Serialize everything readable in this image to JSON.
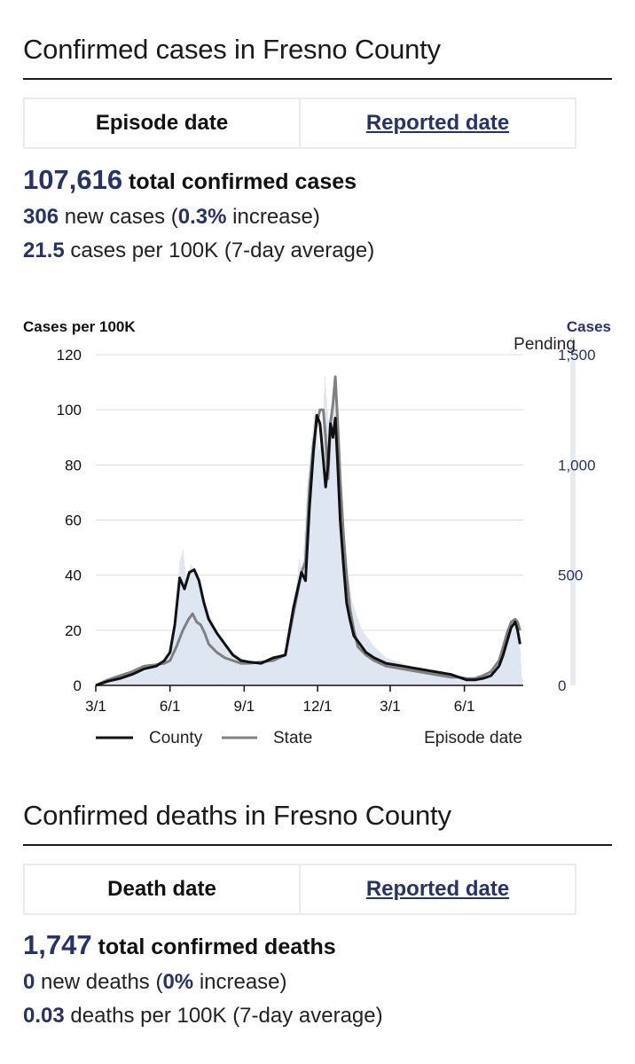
{
  "cases_section": {
    "title": "Confirmed cases in Fresno County",
    "toggle": {
      "active_label": "Episode date",
      "link_label": "Reported date"
    },
    "total_value": "107,616",
    "total_label": "total confirmed cases",
    "new_value": "306",
    "new_label_pre": "new cases (",
    "new_pct": "0.3%",
    "new_label_post": "increase)",
    "rate_value": "21.5",
    "rate_label": "cases per 100K (7-day average)"
  },
  "deaths_section": {
    "title": "Confirmed deaths in Fresno County",
    "toggle": {
      "active_label": "Death date",
      "link_label": "Reported date"
    },
    "total_value": "1,747",
    "total_label": "total confirmed deaths",
    "new_value": "0",
    "new_label_pre": "new deaths (",
    "new_pct": "0%",
    "new_label_post": "increase)",
    "rate_value": "0.03",
    "rate_label": "deaths per 100K (7-day average)"
  },
  "colors": {
    "accent": "#26326f",
    "county": "#111111",
    "state": "#808080",
    "bars": "#dde6f1",
    "pending": "#e8ebee"
  },
  "chart_data": {
    "type": "line",
    "ylabel": "Cases per 100K",
    "y2label": "Cases",
    "ylim": [
      0,
      120
    ],
    "yticks": [
      0,
      20,
      40,
      60,
      80,
      100,
      120
    ],
    "y2ticks": [
      0,
      500,
      1000,
      1500
    ],
    "y2lim_equiv": [
      0,
      1500
    ],
    "x_ticks": [
      "3/1",
      "6/1",
      "9/1",
      "12/1",
      "3/1",
      "6/1"
    ],
    "x_tick_positions_days": [
      0,
      92,
      184,
      275,
      365,
      457
    ],
    "x_range_days": [
      0,
      530
    ],
    "pending_label": "Pending",
    "pending_range_days": [
      520,
      530
    ],
    "x_axis_note": "Episode date",
    "legend": [
      "County",
      "State"
    ],
    "series": [
      {
        "name": "County",
        "x": [
          0,
          15,
          30,
          45,
          60,
          75,
          85,
          92,
          98,
          104,
          110,
          116,
          122,
          128,
          134,
          140,
          150,
          160,
          170,
          180,
          190,
          205,
          220,
          235,
          245,
          255,
          260,
          265,
          270,
          274,
          278,
          282,
          285,
          288,
          291,
          294,
          297,
          300,
          303,
          307,
          311,
          315,
          320,
          325,
          335,
          345,
          360,
          380,
          400,
          420,
          440,
          450,
          460,
          470,
          480,
          490,
          500,
          505,
          510,
          515,
          520,
          523,
          526
        ],
        "values": [
          0,
          1.5,
          2.5,
          4,
          6,
          7,
          9,
          12,
          22,
          39,
          35,
          41,
          42,
          38,
          30,
          24,
          19,
          15,
          11,
          9,
          8.5,
          8,
          10,
          11,
          28,
          41,
          38,
          65,
          85,
          98,
          95,
          82,
          72,
          80,
          95,
          90,
          97,
          80,
          60,
          44,
          30,
          24,
          18,
          16,
          12,
          10,
          8,
          7,
          6,
          5,
          4,
          3,
          2,
          2,
          2.5,
          3.5,
          7,
          11,
          16,
          21,
          23,
          20,
          15
        ]
      },
      {
        "name": "State",
        "x": [
          0,
          15,
          30,
          45,
          60,
          75,
          85,
          92,
          100,
          108,
          115,
          120,
          125,
          130,
          135,
          140,
          150,
          160,
          170,
          180,
          190,
          205,
          220,
          235,
          245,
          255,
          260,
          265,
          270,
          274,
          278,
          282,
          285,
          288,
          291,
          294,
          297,
          300,
          303,
          307,
          311,
          315,
          320,
          325,
          335,
          345,
          360,
          380,
          400,
          420,
          440,
          450,
          460,
          470,
          480,
          490,
          500,
          505,
          510,
          515,
          520,
          523,
          526
        ],
        "values": [
          0,
          2,
          3.5,
          5,
          7,
          7.5,
          8,
          9,
          14,
          20,
          24,
          26,
          23,
          22,
          19,
          15,
          12,
          10,
          9,
          8,
          8,
          8.5,
          9,
          11,
          26,
          41,
          45,
          72,
          88,
          95,
          100,
          100,
          90,
          75,
          95,
          102,
          112,
          95,
          75,
          55,
          40,
          28,
          20,
          14,
          11,
          9,
          7,
          6,
          5,
          4,
          3,
          3,
          2.5,
          2.5,
          3.5,
          5,
          9,
          14,
          19,
          23,
          24,
          23,
          20
        ]
      },
      {
        "name": "Daily cases",
        "x": [
          0,
          30,
          60,
          85,
          95,
          100,
          104,
          108,
          112,
          118,
          124,
          130,
          140,
          155,
          170,
          185,
          200,
          215,
          230,
          240,
          248,
          252,
          256,
          262,
          268,
          272,
          276,
          280,
          284,
          288,
          292,
          296,
          300,
          305,
          310,
          318,
          330,
          345,
          360,
          380,
          400,
          420,
          440,
          460,
          480,
          495,
          505,
          512,
          518,
          522,
          525,
          528
        ],
        "values": [
          0,
          3,
          5,
          8,
          15,
          30,
          45,
          49,
          38,
          44,
          40,
          36,
          26,
          17,
          12,
          9,
          8,
          8.5,
          10,
          16,
          34,
          46,
          40,
          72,
          90,
          100,
          85,
          88,
          112,
          96,
          98,
          106,
          84,
          62,
          46,
          30,
          20,
          14,
          10,
          8,
          6,
          4,
          3,
          2.5,
          3,
          6,
          11,
          17,
          21,
          22,
          18,
          3
        ]
      }
    ]
  }
}
